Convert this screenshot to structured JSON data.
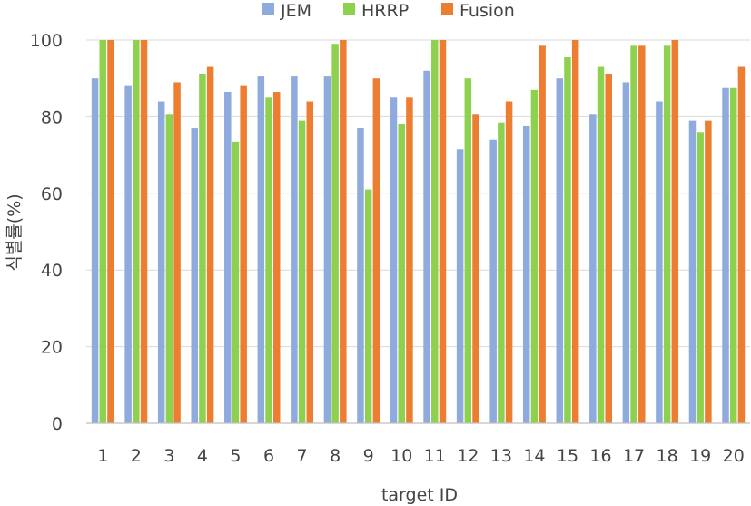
{
  "chart_data": {
    "type": "bar",
    "title": "",
    "xlabel": "target ID",
    "ylabel": "식별률(%)",
    "ylim": [
      0,
      100
    ],
    "yticks": [
      0,
      20,
      40,
      60,
      80,
      100
    ],
    "grid": true,
    "legend_position": "top",
    "categories": [
      "1",
      "2",
      "3",
      "4",
      "5",
      "6",
      "7",
      "8",
      "9",
      "10",
      "11",
      "12",
      "13",
      "14",
      "15",
      "16",
      "17",
      "18",
      "19",
      "20"
    ],
    "series": [
      {
        "name": "JEM",
        "color": "#8faadc",
        "values": [
          90,
          88,
          84,
          77,
          86.5,
          90.5,
          90.5,
          90.5,
          77,
          85,
          92,
          71.5,
          74,
          77.5,
          90,
          80.5,
          89,
          84,
          79,
          87.5
        ]
      },
      {
        "name": "HRRP",
        "color": "#8ed14f",
        "values": [
          100,
          100,
          80.5,
          91,
          73.5,
          85,
          79,
          99,
          61,
          78,
          100,
          90,
          78.5,
          87,
          95.5,
          93,
          98.5,
          98.5,
          76,
          87.5
        ]
      },
      {
        "name": "Fusion",
        "color": "#ed7d31",
        "values": [
          100,
          100,
          89,
          93,
          88,
          86.5,
          84,
          100,
          90,
          85,
          100,
          80.5,
          84,
          98.5,
          100,
          91,
          98.5,
          100,
          79,
          93
        ]
      }
    ]
  }
}
